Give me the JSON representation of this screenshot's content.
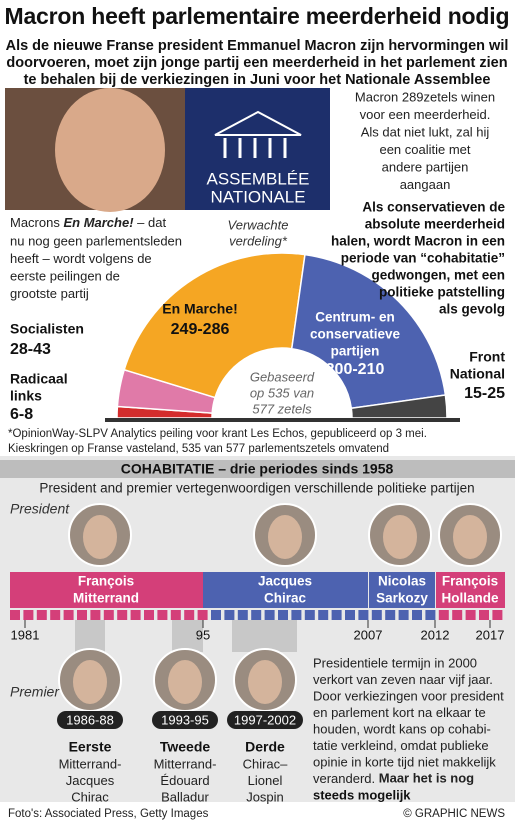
{
  "header": {
    "title": "Macron heeft parlementaire meerderheid nodig",
    "subtitle": [
      "Als de nieuwe Franse president Emmanuel Macron zijn hervormingen wil",
      "doorvoeren, moet zijn jonge partij een meerderheid in het parlement zien",
      "te behalen bij de verkiezingen in Juni voor het Nationale Assemblee"
    ]
  },
  "logo": [
    "ASSEMBLÉE",
    "NATIONALE"
  ],
  "intro_right": [
    "Macron 289zetels winen",
    "voor een meerderheid.",
    "Als dat niet lukt, zal hij",
    "een coalitie met",
    "andere partijen",
    "aangaan"
  ],
  "intro_left": {
    "before": "Macrons ",
    "em": "En Marche!",
    "lines": [
      " – dat",
      "nu nog geen parlementsleden",
      "heeft – wordt volgens de",
      "eerste peilingen de",
      "grootste partij"
    ]
  },
  "chart_caption": [
    "Verwachte",
    "verdeling*"
  ],
  "cohabitation_note": [
    "Als conservatieven de",
    "absolute meerderheid",
    "halen, wordt Macron in een",
    "periode van “cohabitatie”",
    "gedwongen, met een",
    "politieke patstelling",
    "als gevolg"
  ],
  "parties": [
    {
      "name": [
        "Radicaal",
        "links"
      ],
      "range": "6-8"
    },
    {
      "name": [
        "Socialisten"
      ],
      "range": "28-43"
    },
    {
      "name": [
        "En Marche!"
      ],
      "range": "249-286"
    },
    {
      "name": [
        "Centrum- en",
        "conservatieve",
        "partijen"
      ],
      "range": "200-210"
    },
    {
      "name": [
        "Front",
        "National"
      ],
      "range": "15-25"
    }
  ],
  "basis": [
    "Gebaseerd",
    "op 535 van",
    "577 zetels"
  ],
  "footnote": [
    "*OpinionWay-SLPV Analytics peiling voor krant Les Echos, gepubliceerd op 3 mei.",
    "Kieskringen op Franse vasteland, 535 van 577 parlementszetels omvatend"
  ],
  "section": {
    "title": "COHABITATIE – drie periodes sinds 1958",
    "subtitle": "President and premier vertegenwoordigen verschillende politieke partijen"
  },
  "labels": {
    "president": "President",
    "premier": "Premier"
  },
  "presidents": [
    [
      "François",
      "Mitterrand"
    ],
    [
      "Jacques",
      "Chirac"
    ],
    [
      "Nicolas",
      "Sarkozy"
    ],
    [
      "François",
      "Hollande"
    ]
  ],
  "years": [
    "1981",
    "95",
    "2007",
    "2012",
    "2017"
  ],
  "cohabitations": [
    {
      "period": "1986-88",
      "order": "Eerste",
      "lines": [
        "Mitterrand-",
        "Jacques",
        "Chirac"
      ]
    },
    {
      "period": "1993-95",
      "order": "Tweede",
      "lines": [
        "Mitterrand-",
        "Édouard",
        "Balladur"
      ]
    },
    {
      "period": "1997-2002",
      "order": "Derde",
      "lines": [
        "Chirac–",
        "Lionel",
        "Jospin"
      ]
    }
  ],
  "term_note": {
    "lines": [
      "Presidentiele termijn in 2000",
      "verkort van zeven naar vijf jaar.",
      "Door verkiezingen voor president",
      "en parlement kort na elkaar te",
      "houden, wordt kans op cohabi-",
      "tatie verkleind, omdat publieke",
      "opinie in korte tijd niet makkelijk",
      "veranderd."
    ],
    "bold": [
      " Maar het is nog",
      "steeds mogelijk"
    ]
  },
  "footer": {
    "credit": "Foto's: Associated Press, Getty Images",
    "copyright": "© GRAPHIC NEWS"
  }
}
